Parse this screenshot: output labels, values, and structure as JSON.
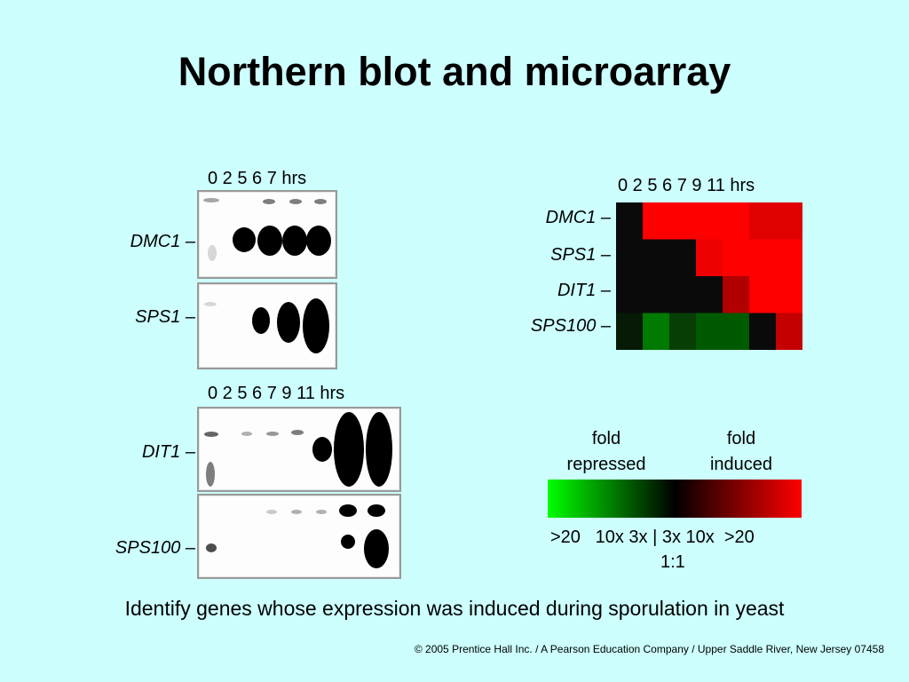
{
  "title": "Northern blot and microarray",
  "northern": {
    "top_header": "0   2  5  6  7  hrs",
    "bottom_header": "0   2  5  6   7  9  11 hrs",
    "genes": {
      "dmc1": "DMC1 –",
      "sps1": "SPS1 –",
      "dit1": "DIT1 –",
      "sps100": "SPS100 –"
    }
  },
  "microarray": {
    "header": "0  2  5  6   7    9 11 hrs",
    "rows": [
      "DMC1 –",
      "SPS1 –",
      "DIT1 –",
      "SPS100 –"
    ],
    "time_points": [
      "0",
      "2",
      "5",
      "6",
      "7",
      "9",
      "11"
    ],
    "colors": [
      [
        "#0a0a0a",
        "#ff0000",
        "#ff0000",
        "#ff0000",
        "#ff0000",
        "#e00000",
        "#e00000"
      ],
      [
        "#0a0a0a",
        "#0a0a0a",
        "#0a0a0a",
        "#ee0000",
        "#ff0000",
        "#ff0000",
        "#ff0000"
      ],
      [
        "#0a0a0a",
        "#0a0a0a",
        "#0a0a0a",
        "#0a0a0a",
        "#b00000",
        "#ff0000",
        "#ff0000"
      ],
      [
        "#061a06",
        "#007a00",
        "#063e06",
        "#005a00",
        "#005a00",
        "#0a0a0a",
        "#c40000"
      ]
    ]
  },
  "legend": {
    "repressed_line1": "fold",
    "repressed_line2": "repressed",
    "induced_line1": "fold",
    "induced_line2": "induced",
    "scale": ">20   10x 3x | 3x 10x  >20",
    "center": "1:1",
    "gradient_colors": [
      "#00ff00",
      "#000000",
      "#ff0000"
    ]
  },
  "caption": "Identify genes whose expression was induced during sporulation in yeast",
  "copyright": "© 2005 Prentice Hall Inc. / A Pearson Education Company / Upper Saddle River, New Jersey 07458"
}
